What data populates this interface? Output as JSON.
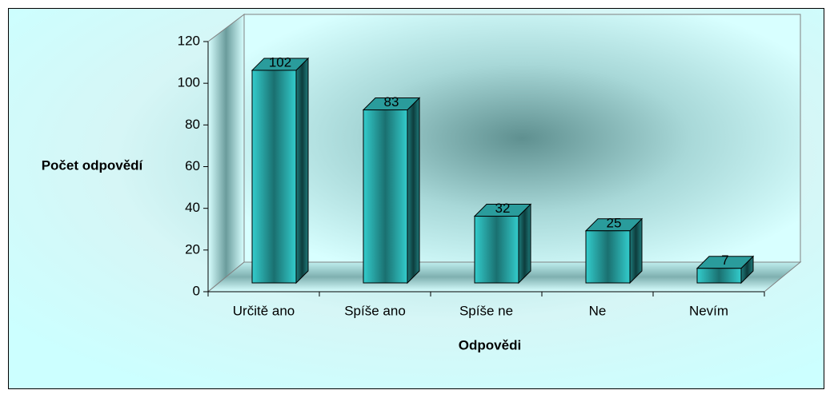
{
  "chart_data": {
    "type": "bar",
    "x_label": "Odpovědi",
    "y_label": "Počet odpovědí",
    "categories": [
      "Určitě ano",
      "Spíše ano",
      "Spíše ne",
      "Ne",
      "Nevím"
    ],
    "values": [
      102,
      83,
      32,
      25,
      7
    ],
    "color": "#33cccc",
    "ylim": [
      0,
      120
    ],
    "yticks": [
      0,
      20,
      40,
      60,
      80,
      100,
      120
    ],
    "grid": false
  }
}
